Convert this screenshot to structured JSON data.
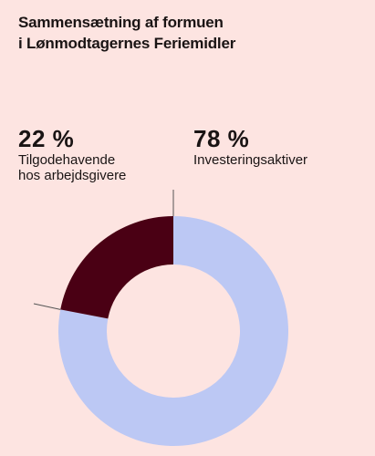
{
  "chart_data": {
    "type": "pie",
    "variant": "donut",
    "title_lines": [
      "Sammensætning af formuen",
      "i Lønmodtagernes Feriemidler"
    ],
    "slices": [
      {
        "value": 78,
        "value_label": "78 %",
        "label": "Investeringsaktiver",
        "color": "#bcc8f4"
      },
      {
        "value": 22,
        "value_label": "22 %",
        "label_lines": [
          "Tilgodehavende",
          "hos arbejdsgivere"
        ],
        "color": "#4a0014"
      }
    ]
  },
  "colors": {
    "background": "#fde4e1",
    "leader_line": "#555555"
  }
}
